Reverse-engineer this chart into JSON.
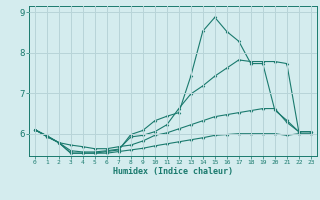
{
  "bg_color": "#d4ecee",
  "grid_color": "#b8d4d8",
  "line_color": "#1a7a6e",
  "xlabel": "Humidex (Indice chaleur)",
  "yticks": [
    6,
    7,
    8,
    9
  ],
  "xticks": [
    0,
    1,
    2,
    3,
    4,
    5,
    6,
    7,
    8,
    9,
    10,
    11,
    12,
    13,
    14,
    15,
    16,
    17,
    18,
    19,
    20,
    21,
    22,
    23
  ],
  "x_min": -0.5,
  "x_max": 23.5,
  "y_min": 5.45,
  "y_max": 9.15,
  "line1_x": [
    0,
    1,
    2,
    3,
    4,
    5,
    6,
    7,
    8,
    9,
    10,
    11,
    12,
    13,
    14,
    15,
    16,
    17,
    18,
    19,
    20,
    21,
    22,
    23
  ],
  "line1_y": [
    6.1,
    5.95,
    5.78,
    5.52,
    5.52,
    5.52,
    5.56,
    5.6,
    5.98,
    6.08,
    6.32,
    6.43,
    6.52,
    7.42,
    8.53,
    8.87,
    8.52,
    8.28,
    7.73,
    7.73,
    6.58,
    6.33,
    6.05,
    6.05
  ],
  "line2_x": [
    0,
    1,
    2,
    3,
    4,
    5,
    6,
    7,
    8,
    9,
    10,
    11,
    12,
    13,
    14,
    15,
    16,
    17,
    18,
    19,
    20,
    21,
    22,
    23
  ],
  "line2_y": [
    6.1,
    5.95,
    5.78,
    5.58,
    5.55,
    5.55,
    5.58,
    5.62,
    5.92,
    5.96,
    6.05,
    6.22,
    6.62,
    6.98,
    7.18,
    7.42,
    7.62,
    7.82,
    7.78,
    7.78,
    7.78,
    7.73,
    6.05,
    6.05
  ],
  "line3_x": [
    0,
    1,
    2,
    3,
    4,
    5,
    6,
    7,
    8,
    9,
    10,
    11,
    12,
    13,
    14,
    15,
    16,
    17,
    18,
    19,
    20,
    21,
    22,
    23
  ],
  "line3_y": [
    6.1,
    5.93,
    5.78,
    5.52,
    5.52,
    5.52,
    5.52,
    5.56,
    5.6,
    5.64,
    5.7,
    5.75,
    5.8,
    5.85,
    5.9,
    5.96,
    5.98,
    6.0,
    6.0,
    6.0,
    6.0,
    5.96,
    6.0,
    6.0
  ],
  "line4_x": [
    0,
    1,
    2,
    3,
    4,
    5,
    6,
    7,
    8,
    9,
    10,
    11,
    12,
    13,
    14,
    15,
    16,
    17,
    18,
    19,
    20,
    21,
    22,
    23
  ],
  "line4_y": [
    6.1,
    5.93,
    5.78,
    5.72,
    5.68,
    5.63,
    5.63,
    5.68,
    5.72,
    5.82,
    5.96,
    6.02,
    6.12,
    6.22,
    6.32,
    6.42,
    6.47,
    6.52,
    6.57,
    6.62,
    6.62,
    6.28,
    6.05,
    6.05
  ]
}
